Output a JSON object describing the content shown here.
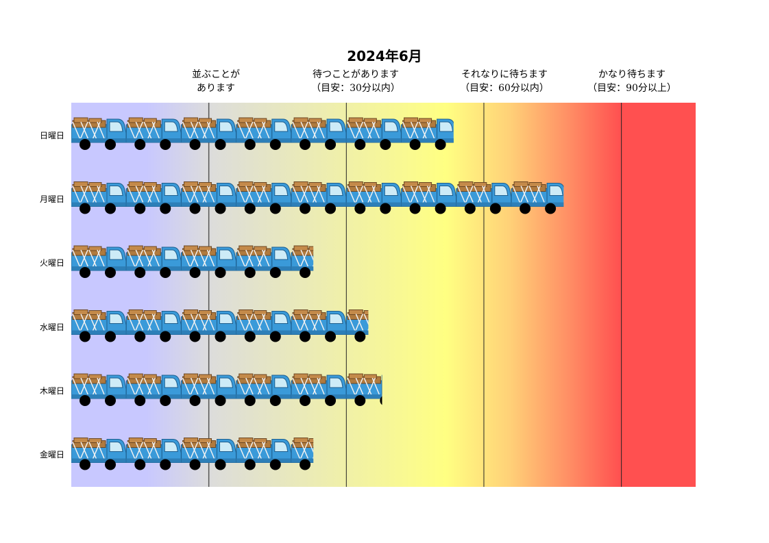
{
  "chart_data": {
    "type": "bar",
    "title": "2024年6月",
    "categories": [
      "日曜日",
      "月曜日",
      "火曜日",
      "水曜日",
      "木曜日",
      "金曜日"
    ],
    "values": [
      6.95,
      8.95,
      4.4,
      5.4,
      5.65,
      4.4
    ],
    "xlim": [
      0,
      11.35
    ],
    "unit_mark": "truck-icon",
    "zones": [
      {
        "lines": [
          "並ぶことが",
          "あります"
        ],
        "boundary": 2.5
      },
      {
        "lines": [
          "待つことがあります",
          "（目安：30分以内）"
        ],
        "boundary": 5
      },
      {
        "lines": [
          "それなりに待ちます",
          "（目安：60分以内）"
        ],
        "boundary": 7.5
      },
      {
        "lines": [
          "かなり待ちます",
          "（目安：90分以上）"
        ],
        "boundary": 10
      }
    ],
    "gradient_colors": [
      "#c8c8ff",
      "#c8c8ff",
      "#dcdcdc",
      "#ffff82",
      "#ffd278",
      "#ff8c64",
      "#ff5050",
      "#ff5050"
    ],
    "grid": false
  },
  "colors": {
    "truck_body": "#3a9ad9",
    "truck_cab": "#3a9ad9",
    "truck_window": "#cdebf7",
    "cargo": "#b07a3e",
    "wheel": "#000000",
    "rope": "#f2f2f2"
  }
}
